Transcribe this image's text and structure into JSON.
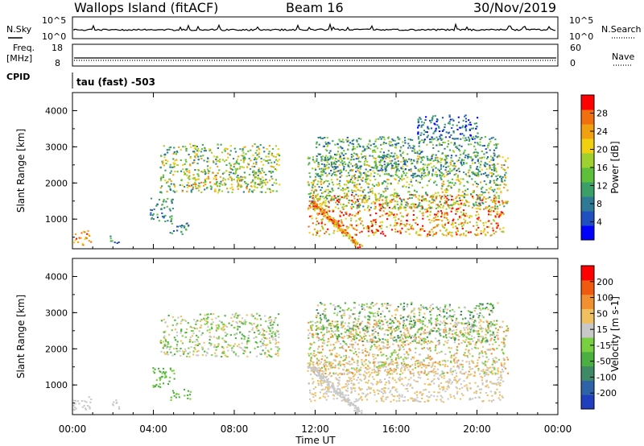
{
  "header": {
    "station": "Wallops Island (fitACF)",
    "beam": "Beam 16",
    "date": "30/Nov/2019"
  },
  "top_panels": {
    "nsky_label": "N.Sky",
    "nsky_ticks": [
      "10^5",
      "10^0"
    ],
    "nsearch_label": "N.Search",
    "freq_label": "Freq.",
    "freq_unit": "[MHz]",
    "freq_ticks": [
      "18",
      "8"
    ],
    "nave_label": "Nave",
    "nave_ticks": [
      "60",
      "0"
    ],
    "cpid_label": "CPID",
    "cpid_text": "tau (fast) -503"
  },
  "chart_data": [
    {
      "type": "heatmap",
      "name": "power",
      "ylabel": "Slant Range [km]",
      "xlabel": "Time UT",
      "x_tick_labels": [
        "00:00",
        "04:00",
        "08:00",
        "12:00",
        "16:00",
        "20:00",
        "00:00"
      ],
      "x_ticks_hours": [
        0,
        4,
        8,
        12,
        16,
        20,
        24
      ],
      "xlim_hours": [
        0,
        24
      ],
      "ylim_km": [
        180,
        4500
      ],
      "y_ticks": [
        1000,
        2000,
        3000,
        4000
      ],
      "colorbar": {
        "label": "Power [dB]",
        "ticks": [
          "4",
          "8",
          "12",
          "16",
          "20",
          "24",
          "28"
        ],
        "colors": [
          "#0000ff",
          "#2050c0",
          "#2e7a96",
          "#3aa068",
          "#5ec03a",
          "#9ed030",
          "#f0d010",
          "#f0a010",
          "#f07010",
          "#ff0000"
        ]
      },
      "regions": [
        {
          "t0": 4.3,
          "t1": 10.2,
          "r0": 1750,
          "r1": 3100,
          "c": [
            2,
            7
          ]
        },
        {
          "t0": 5.5,
          "t1": 9.5,
          "r0": 1900,
          "r1": 2200,
          "c": [
            4,
            8
          ]
        },
        {
          "t0": 3.8,
          "t1": 5.0,
          "r0": 950,
          "r1": 1600,
          "c": [
            1,
            4
          ]
        },
        {
          "t0": 0.0,
          "t1": 0.9,
          "r0": 300,
          "r1": 700,
          "c": [
            6,
            9
          ]
        },
        {
          "t0": 4.8,
          "t1": 5.8,
          "r0": 600,
          "r1": 950,
          "c": [
            1,
            4
          ]
        },
        {
          "t0": 1.8,
          "t1": 2.3,
          "r0": 350,
          "r1": 600,
          "c": [
            1,
            4
          ]
        },
        {
          "t0": 11.6,
          "t1": 21.3,
          "r0": 550,
          "r1": 1700,
          "c": [
            5,
            9
          ]
        },
        {
          "t0": 11.6,
          "t1": 21.5,
          "r0": 1300,
          "r1": 2800,
          "c": [
            2,
            7
          ]
        },
        {
          "t0": 12.0,
          "t1": 21.0,
          "r0": 2200,
          "r1": 3300,
          "c": [
            1,
            5
          ]
        },
        {
          "t0": 17.0,
          "t1": 20.0,
          "r0": 3200,
          "r1": 3900,
          "c": [
            0,
            3
          ]
        }
      ],
      "streak": {
        "t0": 11.8,
        "t1": 14.2,
        "r0": 1500,
        "r1": 250,
        "c": [
          5,
          9
        ]
      }
    },
    {
      "type": "heatmap",
      "name": "velocity",
      "ylabel": "Slant Range [km]",
      "xlabel": "Time UT",
      "x_tick_labels": [
        "00:00",
        "04:00",
        "08:00",
        "12:00",
        "16:00",
        "20:00",
        "00:00"
      ],
      "x_ticks_hours": [
        0,
        4,
        8,
        12,
        16,
        20,
        24
      ],
      "xlim_hours": [
        0,
        24
      ],
      "ylim_km": [
        180,
        4500
      ],
      "y_ticks": [
        1000,
        2000,
        3000,
        4000
      ],
      "colorbar": {
        "label": "Velocity [m s-1]",
        "ticks": [
          "200",
          "100",
          "50",
          "15",
          "-15",
          "-50",
          "-100",
          "-200"
        ],
        "colors": [
          "#1f3fbf",
          "#2f63a8",
          "#3f8a66",
          "#4bb040",
          "#78d040",
          "#c8c8c8",
          "#f0c060",
          "#f09030",
          "#f05a10",
          "#ff0000"
        ]
      },
      "regions": [
        {
          "t0": 4.3,
          "t1": 10.2,
          "r0": 1800,
          "r1": 3000,
          "c": [
            3,
            6
          ]
        },
        {
          "t0": 3.8,
          "t1": 5.0,
          "r0": 950,
          "r1": 1500,
          "c": [
            3,
            4
          ]
        },
        {
          "t0": 0.0,
          "t1": 0.9,
          "r0": 300,
          "r1": 700,
          "c": [
            5,
            5
          ]
        },
        {
          "t0": 4.8,
          "t1": 5.8,
          "r0": 600,
          "r1": 900,
          "c": [
            3,
            4
          ]
        },
        {
          "t0": 1.8,
          "t1": 2.3,
          "r0": 350,
          "r1": 600,
          "c": [
            5,
            5
          ]
        },
        {
          "t0": 11.6,
          "t1": 21.3,
          "r0": 550,
          "r1": 1700,
          "c": [
            5,
            6
          ]
        },
        {
          "t0": 11.6,
          "t1": 21.5,
          "r0": 1300,
          "r1": 2800,
          "c": [
            4,
            7
          ]
        },
        {
          "t0": 12.0,
          "t1": 21.0,
          "r0": 2200,
          "r1": 3300,
          "c": [
            2,
            6
          ]
        }
      ],
      "streak": {
        "t0": 11.8,
        "t1": 14.2,
        "r0": 1500,
        "r1": 250,
        "c": [
          5,
          5
        ]
      }
    }
  ]
}
